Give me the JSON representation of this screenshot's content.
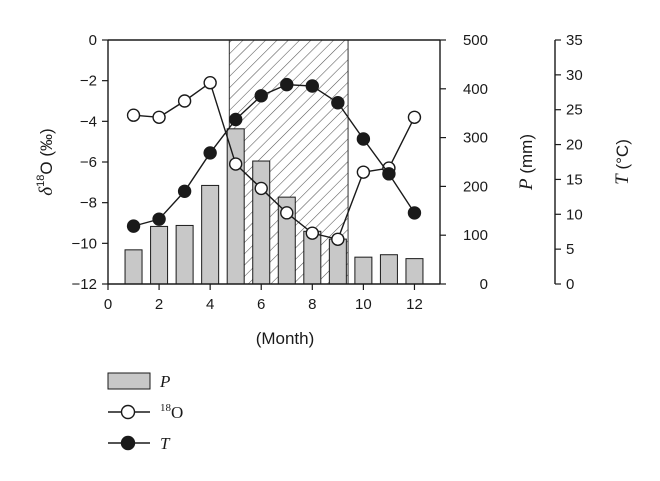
{
  "chart_data": {
    "type": "bar+line",
    "x": [
      1,
      2,
      3,
      4,
      5,
      6,
      7,
      8,
      9,
      10,
      11,
      12
    ],
    "xlabel": "(Month)",
    "xlim": [
      0,
      13
    ],
    "xticks": [
      0,
      2,
      4,
      6,
      8,
      10,
      12
    ],
    "shaded_region": {
      "x_range": [
        4.75,
        9.4
      ],
      "pattern": "diagonal-hatch"
    },
    "axes": {
      "left": {
        "label_parts": [
          "δ",
          "18",
          "O (‰)"
        ],
        "lim": [
          -12,
          0
        ],
        "ticks": [
          0,
          -2,
          -4,
          -6,
          -8,
          -10,
          -12
        ]
      },
      "right1": {
        "label_parts": [
          "P",
          " (mm)"
        ],
        "lim": [
          0,
          500
        ],
        "ticks": [
          0,
          100,
          200,
          300,
          400,
          500
        ]
      },
      "right2": {
        "label_parts": [
          "T",
          " (°C)"
        ],
        "lim": [
          0,
          35
        ],
        "ticks": [
          0,
          5,
          10,
          15,
          20,
          25,
          30,
          35
        ]
      }
    },
    "series": [
      {
        "name": "P",
        "type": "bar",
        "axis": "right1",
        "color": "#c8c8c8",
        "values": [
          70,
          118,
          120,
          202,
          318,
          252,
          178,
          108,
          92,
          55,
          60,
          52
        ]
      },
      {
        "name": "18O",
        "type": "line",
        "axis": "left",
        "marker": "open-circle",
        "values": [
          -3.7,
          -3.8,
          -3.0,
          -2.1,
          -6.1,
          -7.3,
          -8.5,
          -9.5,
          -9.8,
          -6.5,
          -6.3,
          -3.8
        ]
      },
      {
        "name": "T",
        "type": "line",
        "axis": "right2",
        "marker": "filled-circle",
        "values": [
          8.3,
          9.3,
          13.3,
          18.8,
          23.6,
          27.0,
          28.6,
          28.4,
          26.0,
          20.8,
          15.8,
          10.2
        ]
      }
    ],
    "legend": {
      "placement": "bottom-left",
      "entries": [
        {
          "label": "P",
          "style": "bar"
        },
        {
          "label": "18O",
          "style": "open-circle",
          "superscript": "18",
          "base": "O"
        },
        {
          "label": "T",
          "style": "filled-circle"
        }
      ]
    }
  }
}
